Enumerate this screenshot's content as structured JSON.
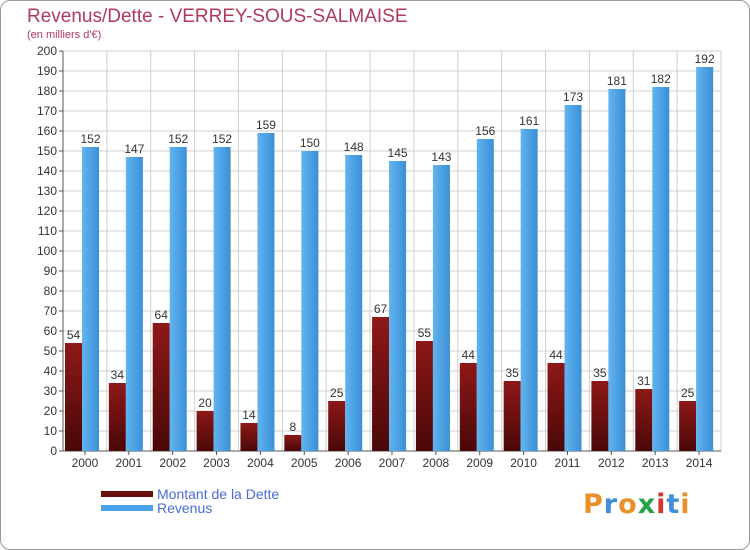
{
  "header": {
    "title": "Revenus/Dette - VERREY-SOUS-SALMAISE",
    "subtitle": "(en milliers d'€)"
  },
  "chart_data": {
    "type": "bar",
    "categories": [
      "2000",
      "2001",
      "2002",
      "2003",
      "2004",
      "2005",
      "2006",
      "2007",
      "2008",
      "2009",
      "2010",
      "2011",
      "2012",
      "2013",
      "2014"
    ],
    "series": [
      {
        "name": "Montant de la Dette",
        "color": "#7a1010",
        "values": [
          54,
          34,
          64,
          20,
          14,
          8,
          25,
          67,
          55,
          44,
          35,
          44,
          35,
          31,
          25
        ]
      },
      {
        "name": "Revenus",
        "color": "#4aa3e8",
        "values": [
          152,
          147,
          152,
          152,
          159,
          150,
          148,
          145,
          143,
          156,
          161,
          173,
          181,
          182,
          192
        ]
      }
    ],
    "ylim": [
      0,
      200
    ],
    "yticks": [
      0,
      10,
      20,
      30,
      40,
      50,
      60,
      70,
      80,
      90,
      100,
      110,
      120,
      130,
      140,
      150,
      160,
      170,
      180,
      190,
      200
    ],
    "grid": true,
    "legend_position": "bottom-left"
  },
  "legend": {
    "items": [
      {
        "label": "Montant de la Dette",
        "color": "#7a1010"
      },
      {
        "label": "Revenus",
        "color": "#4aa3e8"
      }
    ]
  },
  "logo": {
    "letters": [
      "P",
      "r",
      "o",
      "x",
      "i",
      "t",
      "i"
    ],
    "colors": [
      "#e8902a",
      "#3d8fd8",
      "#e8902a",
      "#2aa24a",
      "#d8342a",
      "#3d8fd8",
      "#e8902a"
    ]
  }
}
